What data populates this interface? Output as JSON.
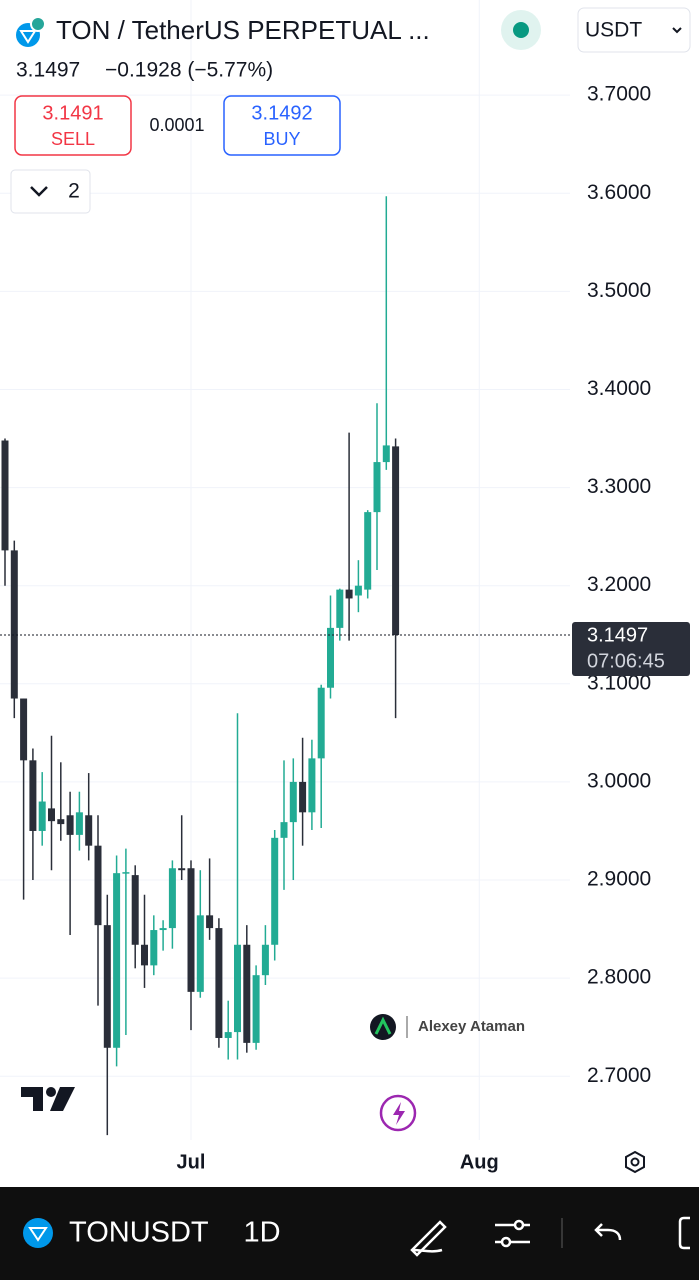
{
  "header": {
    "title": "TON / TetherUS PERPETUAL ...",
    "price": "3.1497",
    "change": "−0.1928 (−5.77%)"
  },
  "currency": "USDT",
  "order": {
    "sell_price": "3.1491",
    "sell_label": "SELL",
    "spread": "0.0001",
    "buy_price": "3.1492",
    "buy_label": "BUY"
  },
  "indicators_count": "2",
  "chart_data": {
    "type": "candlestick",
    "categories": [
      null,
      null,
      null,
      null,
      null,
      null,
      null,
      null,
      null,
      null,
      null,
      null,
      null,
      null,
      null,
      null,
      null,
      null,
      null,
      null,
      "Jul",
      null,
      null,
      null,
      null,
      null,
      null,
      null,
      null,
      null,
      null,
      null,
      null,
      null,
      null,
      null,
      null,
      null,
      null,
      null,
      null,
      null,
      null,
      null,
      null,
      null,
      null,
      null,
      null,
      null,
      null,
      "Aug"
    ],
    "open": [
      3.348,
      3.236,
      3.085,
      3.022,
      2.95,
      2.973,
      2.962,
      2.966,
      2.946,
      2.966,
      2.935,
      2.854,
      2.729,
      2.907,
      2.905,
      2.834,
      2.813,
      2.849,
      2.851,
      2.912,
      2.912,
      2.786,
      2.864,
      2.851,
      2.739,
      2.745,
      2.834,
      2.734,
      2.803,
      2.834,
      2.943,
      2.959,
      3.0,
      2.969,
      3.024,
      3.096,
      3.157,
      3.196,
      3.19,
      3.196,
      3.275,
      3.326,
      3.342,
      null,
      null,
      null,
      null,
      null,
      null,
      null,
      null,
      null
    ],
    "high": [
      3.35,
      3.246,
      3.085,
      3.034,
      3.01,
      3.047,
      3.02,
      2.99,
      2.99,
      3.009,
      2.966,
      2.885,
      2.925,
      2.932,
      2.915,
      2.885,
      2.864,
      2.859,
      2.92,
      2.966,
      2.92,
      2.91,
      2.922,
      2.861,
      2.777,
      3.07,
      2.854,
      2.813,
      2.854,
      2.951,
      3.022,
      3.024,
      3.045,
      3.043,
      3.099,
      3.19,
      3.197,
      3.356,
      3.226,
      3.277,
      3.386,
      3.597,
      3.35,
      null,
      null,
      null,
      null,
      null,
      null,
      null,
      null,
      null
    ],
    "low": [
      3.2,
      3.065,
      2.88,
      2.9,
      2.935,
      2.91,
      2.94,
      2.844,
      2.93,
      2.92,
      2.772,
      2.64,
      2.71,
      2.742,
      2.81,
      2.79,
      2.803,
      2.828,
      2.83,
      2.9,
      2.747,
      2.78,
      2.839,
      2.729,
      2.717,
      2.717,
      2.724,
      2.727,
      2.793,
      2.818,
      2.89,
      2.9,
      2.935,
      2.951,
      2.953,
      3.085,
      3.144,
      3.144,
      3.173,
      3.187,
      3.216,
      3.318,
      3.065,
      null,
      null,
      null,
      null,
      null,
      null,
      null,
      null,
      null
    ],
    "close": [
      3.236,
      3.085,
      3.022,
      2.95,
      2.98,
      2.96,
      2.957,
      2.946,
      2.969,
      2.935,
      2.854,
      2.729,
      2.907,
      2.908,
      2.834,
      2.813,
      2.849,
      2.851,
      2.912,
      2.91,
      2.786,
      2.864,
      2.851,
      2.739,
      2.745,
      2.834,
      2.734,
      2.803,
      2.834,
      2.943,
      2.959,
      3.0,
      2.969,
      3.024,
      3.096,
      3.157,
      3.196,
      3.187,
      3.2,
      3.275,
      3.326,
      3.343,
      3.1497,
      null,
      null,
      null,
      null,
      null,
      null,
      null,
      null,
      null
    ],
    "up_color": "#22ab94",
    "down_color": "#2a2e39",
    "ylim": [
      2.635,
      3.797
    ],
    "yticks": [
      {
        "value": 2.7,
        "label": "2.7000"
      },
      {
        "value": 2.8,
        "label": "2.8000"
      },
      {
        "value": 2.9,
        "label": "2.9000"
      },
      {
        "value": 3.0,
        "label": "3.0000"
      },
      {
        "value": 3.1,
        "label": "3.1000"
      },
      {
        "value": 3.2,
        "label": "3.2000"
      },
      {
        "value": 3.3,
        "label": "3.3000"
      },
      {
        "value": 3.4,
        "label": "3.4000"
      },
      {
        "value": 3.5,
        "label": "3.5000"
      },
      {
        "value": 3.6,
        "label": "3.6000"
      },
      {
        "value": 3.7,
        "label": "3.7000"
      }
    ],
    "grid": true,
    "last_price": 3.1497,
    "countdown": "07:06:45",
    "watermark": "Alexey Ataman"
  },
  "footer": {
    "symbol": "TONUSDT",
    "interval": "1D"
  }
}
